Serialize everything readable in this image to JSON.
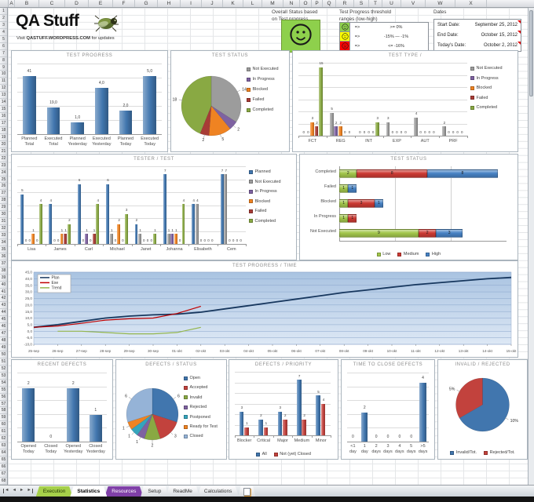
{
  "spreadsheet": {
    "columns": [
      "A",
      "B",
      "C",
      "D",
      "E",
      "F",
      "G",
      "H",
      "I",
      "J",
      "K",
      "L",
      "M",
      "N",
      "O",
      "P",
      "Q",
      "R",
      "S",
      "T",
      "U",
      "V",
      "W",
      "X"
    ],
    "row_count": 68
  },
  "header": {
    "logo": {
      "title": "QA Stuff",
      "subtitle_prefix": "Visit",
      "subtitle_link": "QASTUFF.WORDPRESS.COM",
      "subtitle_suffix": "for updates",
      "icon": "bug-icon"
    },
    "overall_status": {
      "label_line1": "Overall Status based",
      "label_line2": "on Test progress",
      "color": "#8ed04c",
      "icon": "smiley-happy-icon"
    },
    "thresholds": {
      "title_line1": "Test Progress threshold",
      "title_line2": "ranges (low-high)",
      "rows": [
        {
          "icon": "smiley-happy-icon",
          "color": "#8ed04c",
          "arrow": "=>",
          "text": ">= 0%"
        },
        {
          "icon": "smiley-neutral-icon",
          "color": "#ffff00",
          "arrow": "=>",
          "text": "-15%  —  -1%"
        },
        {
          "icon": "smiley-sad-icon",
          "color": "#ff0000",
          "arrow": "=>",
          "text": "<= -16%"
        }
      ]
    },
    "dates": {
      "title": "Dates",
      "rows": [
        {
          "label": "Start Date:",
          "value": "September 25, 2012"
        },
        {
          "label": "End Date:",
          "value": "October 15, 2012"
        },
        {
          "label": "Today's Date:",
          "value": "October 2, 2012"
        }
      ]
    }
  },
  "tabs": {
    "nav_icons": [
      "first-sheet-icon",
      "prev-sheet-icon",
      "next-sheet-icon",
      "last-sheet-icon"
    ],
    "items": [
      {
        "label": "Execution",
        "bg": "#a6d04a",
        "fg": "#1f3300",
        "active": false
      },
      {
        "label": "Statistics",
        "bg": "#ffffff",
        "fg": "#000000",
        "active": true
      },
      {
        "label": "Resources",
        "bg": "#8040a8",
        "fg": "#ffffff",
        "active": false
      },
      {
        "label": "Setup",
        "bg": "",
        "fg": "#333333",
        "active": false
      },
      {
        "label": "ReadMe",
        "bg": "",
        "fg": "#333333",
        "active": false
      },
      {
        "label": "Calculations",
        "bg": "",
        "fg": "#333333",
        "active": false
      }
    ],
    "insert_icon": "insert-worksheet-icon"
  },
  "chart_data": [
    {
      "id": "test_progress",
      "type": "bar",
      "title": "TEST PROGRESS",
      "bar_color": "#4176ae",
      "categories": [
        "Planned Total",
        "Executed Total",
        "Planned Yesterday",
        "Executed Yesterday",
        "Planned Today",
        "Executed Today"
      ],
      "values": [
        41,
        19,
        1,
        4,
        2,
        5
      ],
      "value_labels": [
        "41",
        "19,0",
        "1,0",
        "4,0",
        "2,0",
        "5,0"
      ],
      "scale_groups": [
        [
          0,
          1
        ],
        [
          2,
          3,
          4,
          5
        ]
      ]
    },
    {
      "id": "test_status_pie",
      "type": "pie",
      "title": "TEST STATUS",
      "legend_position": "right",
      "slices": [
        {
          "label": "Not Executed",
          "value": 14,
          "color": "#9c9c9c"
        },
        {
          "label": "In Progress",
          "value": 2,
          "color": "#7e62a1"
        },
        {
          "label": "Blocked",
          "value": 5,
          "color": "#ef8322"
        },
        {
          "label": "Failed",
          "value": 2,
          "color": "#a83c36"
        },
        {
          "label": "Completed",
          "value": 18,
          "color": "#89a943"
        }
      ]
    },
    {
      "id": "test_type",
      "type": "grouped_bar",
      "title": "TEST TYPE /",
      "ymax": 16,
      "legend_position": "right",
      "categories": [
        "FCT",
        "REG",
        "INT",
        "EXP",
        "AUT",
        "PRF"
      ],
      "series": [
        {
          "name": "Not Executed",
          "color": "#9c9c9c",
          "values": [
            0,
            5,
            0,
            3,
            4,
            2
          ]
        },
        {
          "name": "In Progress",
          "color": "#7e62a1",
          "values": [
            0,
            2,
            0,
            0,
            0,
            0
          ]
        },
        {
          "name": "Blocked",
          "color": "#ef8322",
          "values": [
            3,
            2,
            0,
            0,
            0,
            0
          ]
        },
        {
          "name": "Failed",
          "color": "#a83c36",
          "values": [
            2,
            0,
            0,
            0,
            0,
            0
          ]
        },
        {
          "name": "Completed",
          "color": "#89a943",
          "values": [
            15,
            0,
            3,
            0,
            0,
            0
          ]
        }
      ]
    },
    {
      "id": "tester_test",
      "type": "grouped_bar",
      "title": "TESTER / TEST",
      "ymax": 7.8,
      "legend_position": "right",
      "categories": [
        "Lisa",
        "James",
        "Carl",
        "Michael",
        "Janet",
        "Johanna",
        "Elisabeth",
        "Cem"
      ],
      "series": [
        {
          "name": "Planned",
          "color": "#4176ae",
          "values": [
            5,
            4,
            6,
            6,
            2,
            7,
            4,
            7
          ]
        },
        {
          "name": "Not Executed",
          "color": "#9c9c9c",
          "values": [
            0,
            0,
            0,
            1,
            1,
            1,
            4,
            7
          ]
        },
        {
          "name": "In Progress",
          "color": "#7e62a1",
          "values": [
            0,
            0,
            1,
            0,
            0,
            1,
            0,
            0
          ]
        },
        {
          "name": "Blocked",
          "color": "#ef8322",
          "values": [
            1,
            1,
            0,
            2,
            0,
            1,
            0,
            0
          ]
        },
        {
          "name": "Failed",
          "color": "#a83c36",
          "values": [
            0,
            1,
            1,
            0,
            0,
            0,
            0,
            0
          ]
        },
        {
          "name": "Completed",
          "color": "#89a943",
          "values": [
            4,
            2,
            4,
            3,
            1,
            4,
            0,
            0
          ]
        }
      ]
    },
    {
      "id": "test_status_stacked",
      "type": "stacked_hbar",
      "title": "TEST STATUS",
      "xmax": 19,
      "categories": [
        "Completed",
        "Failed",
        "Blocked",
        "In Progress",
        "Not Executed"
      ],
      "series": [
        {
          "name": "Low",
          "color": "#a2c64b",
          "values": [
            2,
            1,
            1,
            1,
            9
          ]
        },
        {
          "name": "Medium",
          "color": "#cc3a33",
          "values": [
            8,
            0,
            3,
            1,
            2
          ]
        },
        {
          "name": "High",
          "color": "#4782c4",
          "values": [
            8,
            1,
            1,
            0,
            3
          ]
        }
      ]
    },
    {
      "id": "test_progress_time",
      "type": "line",
      "title": "TEST PROGRESS / TIME",
      "ylim": [
        -10,
        45
      ],
      "ytick_step": 5,
      "x": [
        "25-sep",
        "26-sep",
        "27-sep",
        "28-sep",
        "29-sep",
        "30-sep",
        "01-okt",
        "02-okt",
        "03-okt",
        "04-okt",
        "05-okt",
        "06-okt",
        "07-okt",
        "08-okt",
        "09-okt",
        "10-okt",
        "11-okt",
        "12-okt",
        "13-okt",
        "14-okt",
        "15-okt"
      ],
      "series": [
        {
          "name": "Plan",
          "color": "#17375e",
          "values": [
            3,
            5,
            7.5,
            10,
            11.5,
            12.5,
            13,
            14.5,
            17,
            19.5,
            22,
            24.5,
            27,
            29.5,
            31.5,
            33.5,
            35.5,
            37,
            38.5,
            40,
            41
          ]
        },
        {
          "name": "Exe",
          "color": "#c00000",
          "values": [
            3,
            4,
            6,
            8.5,
            9.5,
            10,
            13.5,
            19
          ]
        },
        {
          "name": "Trend",
          "color": "#94b64e",
          "values": [
            null,
            0,
            0,
            -1,
            -2,
            -2,
            -1,
            3
          ]
        }
      ]
    },
    {
      "id": "recent_defects",
      "type": "bar",
      "title": "RECENT DEFECTS",
      "bar_color": "#4176ae",
      "ymax": 2.6,
      "categories": [
        "Opened Today",
        "Closed Today",
        "Opened Yesterday",
        "Closed Yesterday"
      ],
      "values": [
        2,
        0,
        2,
        1
      ],
      "value_labels": [
        "2",
        "0",
        "2",
        "1"
      ]
    },
    {
      "id": "defects_status",
      "type": "pie",
      "title": "DEFECTS / STATUS",
      "legend_position": "right",
      "slices": [
        {
          "label": "Open",
          "value": 6,
          "color": "#4176ae"
        },
        {
          "label": "Accepted",
          "value": 3,
          "color": "#c2423d"
        },
        {
          "label": "Invalid",
          "value": 2,
          "color": "#89a943"
        },
        {
          "label": "Rejected",
          "value": 1,
          "color": "#7e62a1"
        },
        {
          "label": "Postponed",
          "value": 1,
          "color": "#35a5bd"
        },
        {
          "label": "Ready for Test",
          "value": 1,
          "color": "#ef8322"
        },
        {
          "label": "Closed",
          "value": 6,
          "color": "#95b3d7"
        }
      ]
    },
    {
      "id": "defects_priority",
      "type": "grouped_bar",
      "title": "DEFECTS / PRIORITY",
      "ymax": 8,
      "legend_position": "bottom",
      "categories": [
        "Blocker",
        "Critical",
        "Major",
        "Medium",
        "Minor"
      ],
      "series": [
        {
          "name": "All",
          "color": "#4176ae",
          "values": [
            3,
            2,
            3,
            7,
            5
          ]
        },
        {
          "name": "Not (yet) Closed",
          "color": "#c2423d",
          "values": [
            1,
            1,
            2,
            2,
            4
          ]
        }
      ]
    },
    {
      "id": "time_to_close",
      "type": "bar",
      "title": "TIME TO CLOSE DEFECTS",
      "bar_color": "#4176ae",
      "ymax": 4.7,
      "categories": [
        "<1 day",
        "1 day",
        "2 days",
        "3 days",
        "4 days",
        "5 days",
        ">5 days"
      ],
      "values": [
        0,
        2,
        0,
        0,
        0,
        0,
        4
      ],
      "value_labels": [
        "0",
        "2",
        "0",
        "0",
        "0",
        "0",
        "4"
      ]
    },
    {
      "id": "invalid_rejected",
      "type": "pie",
      "title": "INVALID / REJECTED",
      "legend_position": "bottom",
      "slices": [
        {
          "label": "Invalid/Tot.",
          "value": 10,
          "display": "10%",
          "color": "#4176ae"
        },
        {
          "label": "Rejected/Tot.",
          "value": 5,
          "display": "5%",
          "color": "#c2423d"
        }
      ]
    }
  ]
}
